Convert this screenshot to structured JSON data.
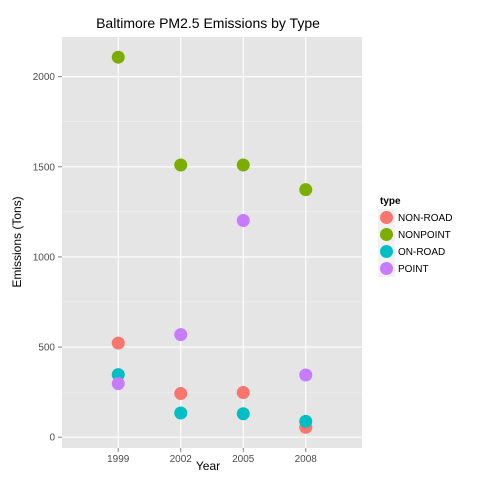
{
  "chart_data": {
    "type": "scatter",
    "title": "Baltimore PM2.5 Emissions by Type",
    "xlabel": "Year",
    "ylabel": "Emissions (Tons)",
    "categories": [
      "1999",
      "2002",
      "2005",
      "2008"
    ],
    "yticks": [
      0,
      500,
      1000,
      1500,
      2000
    ],
    "ylim": [
      -60,
      2220
    ],
    "grid": true,
    "legend_title": "type",
    "legend_position": "right",
    "series": [
      {
        "name": "NON-ROAD",
        "color": "#F8766D",
        "values": [
          522,
          242,
          248,
          55
        ]
      },
      {
        "name": "NONPOINT",
        "color": "#7CAE00",
        "values": [
          2108,
          1510,
          1510,
          1373
        ]
      },
      {
        "name": "ON-ROAD",
        "color": "#00BFC4",
        "values": [
          347,
          134,
          130,
          88
        ]
      },
      {
        "name": "POINT",
        "color": "#C77CFF",
        "values": [
          297,
          569,
          1202,
          345
        ]
      }
    ]
  }
}
